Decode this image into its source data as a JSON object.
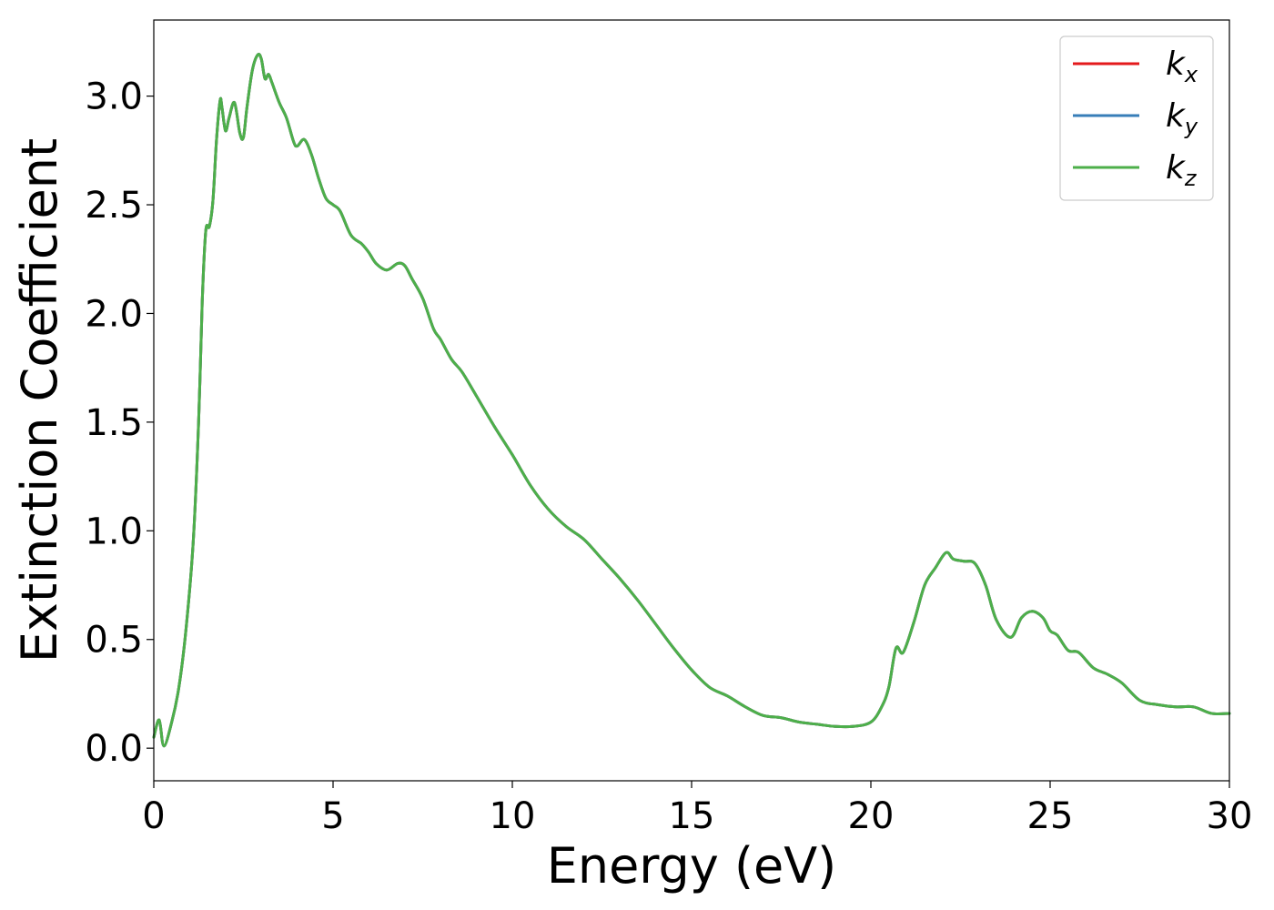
{
  "chart_data": {
    "type": "line",
    "title": "",
    "xlabel": "Energy (eV)",
    "ylabel": "Extinction Coefficient",
    "xlim": [
      0,
      30
    ],
    "ylim": [
      -0.15,
      3.35
    ],
    "xticks": [
      0,
      5,
      10,
      15,
      20,
      25,
      30
    ],
    "xtick_labels": [
      "0",
      "5",
      "10",
      "15",
      "20",
      "25",
      "30"
    ],
    "yticks": [
      0.0,
      0.5,
      1.0,
      1.5,
      2.0,
      2.5,
      3.0
    ],
    "ytick_labels": [
      "0.0",
      "0.5",
      "1.0",
      "1.5",
      "2.0",
      "2.5",
      "3.0"
    ],
    "grid": false,
    "legend_position": "top-right",
    "x": [
      0.0,
      0.15,
      0.28,
      0.5,
      0.7,
      0.9,
      1.1,
      1.25,
      1.35,
      1.45,
      1.55,
      1.65,
      1.75,
      1.85,
      1.9,
      2.0,
      2.1,
      2.25,
      2.4,
      2.5,
      2.6,
      2.75,
      2.9,
      3.0,
      3.1,
      3.2,
      3.3,
      3.5,
      3.7,
      3.9,
      4.0,
      4.2,
      4.4,
      4.6,
      4.8,
      5.0,
      5.2,
      5.5,
      5.8,
      6.0,
      6.2,
      6.5,
      6.8,
      7.0,
      7.2,
      7.5,
      7.8,
      8.0,
      8.3,
      8.6,
      9.0,
      9.5,
      10.0,
      10.5,
      11.0,
      11.5,
      12.0,
      12.5,
      13.0,
      13.5,
      14.0,
      14.5,
      15.0,
      15.5,
      16.0,
      16.5,
      17.0,
      17.5,
      18.0,
      18.5,
      19.0,
      19.5,
      20.0,
      20.3,
      20.5,
      20.7,
      20.9,
      21.2,
      21.5,
      21.8,
      22.1,
      22.3,
      22.6,
      22.9,
      23.2,
      23.5,
      23.9,
      24.2,
      24.5,
      24.8,
      25.0,
      25.2,
      25.5,
      25.8,
      26.2,
      26.6,
      27.0,
      27.5,
      28.0,
      28.5,
      29.0,
      29.5,
      30.0
    ],
    "y": [
      0.05,
      0.13,
      0.01,
      0.12,
      0.28,
      0.55,
      0.95,
      1.5,
      2.05,
      2.38,
      2.4,
      2.52,
      2.8,
      2.98,
      2.95,
      2.84,
      2.9,
      2.97,
      2.83,
      2.81,
      2.95,
      3.12,
      3.19,
      3.17,
      3.08,
      3.1,
      3.06,
      2.97,
      2.9,
      2.79,
      2.77,
      2.8,
      2.73,
      2.62,
      2.53,
      2.5,
      2.47,
      2.36,
      2.32,
      2.28,
      2.23,
      2.2,
      2.23,
      2.22,
      2.16,
      2.07,
      1.93,
      1.88,
      1.79,
      1.73,
      1.62,
      1.48,
      1.35,
      1.21,
      1.1,
      1.02,
      0.96,
      0.87,
      0.78,
      0.68,
      0.57,
      0.46,
      0.36,
      0.28,
      0.24,
      0.19,
      0.15,
      0.14,
      0.12,
      0.11,
      0.1,
      0.1,
      0.12,
      0.19,
      0.28,
      0.46,
      0.44,
      0.58,
      0.75,
      0.83,
      0.9,
      0.87,
      0.86,
      0.85,
      0.75,
      0.59,
      0.51,
      0.6,
      0.63,
      0.6,
      0.54,
      0.52,
      0.45,
      0.44,
      0.37,
      0.34,
      0.3,
      0.22,
      0.2,
      0.19,
      0.19,
      0.16,
      0.16
    ],
    "series": [
      {
        "name": "k_x",
        "label_main": "k",
        "label_sub": "x",
        "color": "#e41a1c"
      },
      {
        "name": "k_y",
        "label_main": "k",
        "label_sub": "y",
        "color": "#377eb8"
      },
      {
        "name": "k_z",
        "label_main": "k",
        "label_sub": "z",
        "color": "#4daf4a"
      }
    ]
  }
}
